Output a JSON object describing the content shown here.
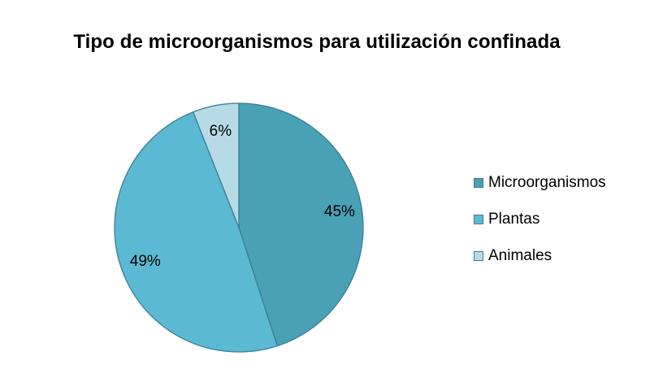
{
  "chart_data": {
    "type": "pie",
    "title": "Tipo de microorganismos para utilización confinada",
    "categories": [
      "Microorganismos",
      "Plantas",
      "Animales"
    ],
    "values": [
      45,
      49,
      6
    ],
    "labels": [
      "45%",
      "49%",
      "6%"
    ],
    "colors": [
      "#4aa0b5",
      "#5cb9d3",
      "#b6dbe6"
    ],
    "edge_color": "#3b7f92",
    "legend_position": "right"
  }
}
